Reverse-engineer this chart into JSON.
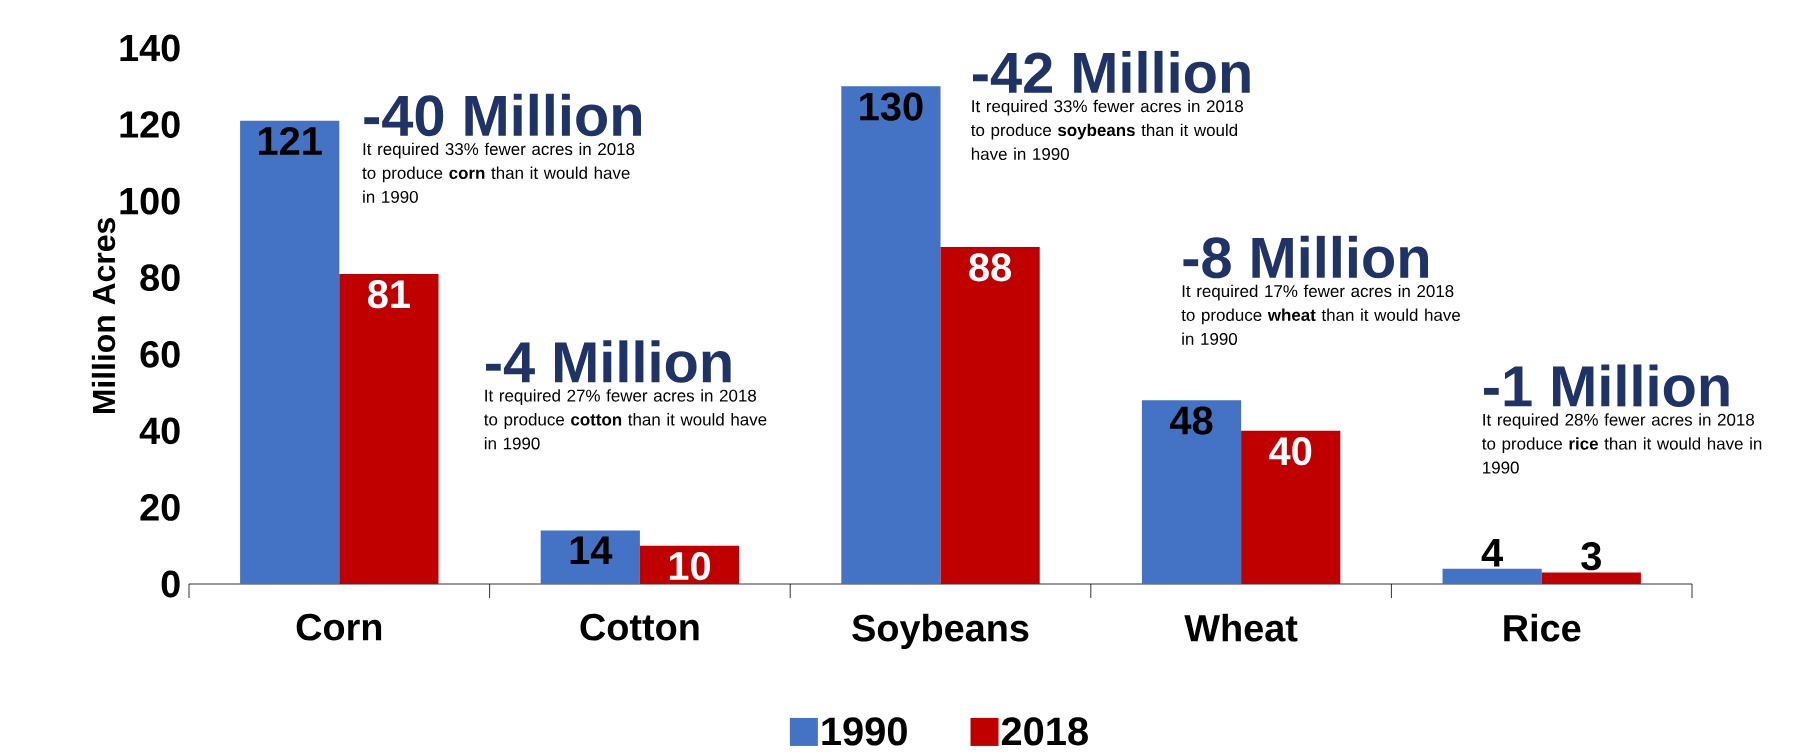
{
  "chart_data": {
    "type": "bar",
    "ylabel": "Million Acres",
    "categories": [
      "Corn",
      "Cotton",
      "Soybeans",
      "Wheat",
      "Rice"
    ],
    "series": [
      {
        "name": "1990",
        "color": "#4472c4",
        "values": [
          121,
          14,
          130,
          48,
          4
        ]
      },
      {
        "name": "2018",
        "color": "#c00000",
        "values": [
          81,
          10,
          88,
          40,
          3
        ]
      }
    ],
    "ylim": [
      0,
      140
    ],
    "yticks": [
      0,
      20,
      40,
      60,
      80,
      100,
      120,
      140
    ],
    "data_labels": true,
    "legend": "bottom",
    "grid": false,
    "annotations": [
      "-40 Million",
      "It required 33% fewer acres in 2018 to produce **corn** than it would have in 1990",
      "-4 Million",
      "It required 27% fewer acres in 2018 to produce **cotton** than it would have in 1990",
      "-42 Million",
      "It required 33% fewer acres in 2018 to produce **soybeans** than it would have in 1990",
      "-8 Million",
      "It required 17% fewer acres in 2018 to produce **wheat** than it would have in 1990",
      "-1 Million",
      "It required 28% fewer acres in 2018 to produce **rice** than it would have in 1990"
    ]
  }
}
